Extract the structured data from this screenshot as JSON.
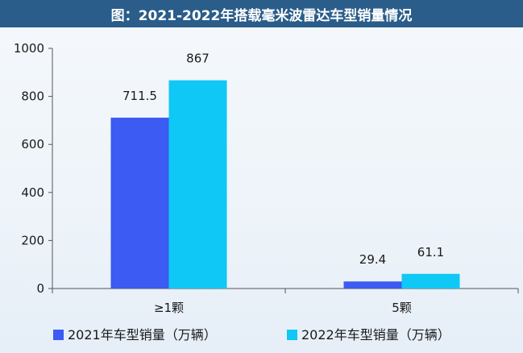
{
  "title": "图：2021-2022年搭载毫米波雷达车型销量情况",
  "chart_data": {
    "type": "bar",
    "title": "图：2021-2022年搭载毫米波雷达车型销量情况",
    "categories": [
      "≥1颗",
      "5颗"
    ],
    "series": [
      {
        "name": "2021年车型销量（万辆）",
        "values": [
          711.5,
          29.4
        ],
        "value_labels": [
          "711.5",
          "29.4"
        ],
        "color": "#3b5bf2"
      },
      {
        "name": "2022年车型销量（万辆）",
        "values": [
          867,
          61.1
        ],
        "value_labels": [
          "867",
          "61.1"
        ],
        "color": "#0fc8f5"
      }
    ],
    "ylim": [
      0,
      1000
    ],
    "yticks": [
      0,
      200,
      400,
      600,
      800,
      1000
    ],
    "xlabel": "",
    "ylabel": "",
    "grid": false,
    "legend_position": "bottom"
  }
}
